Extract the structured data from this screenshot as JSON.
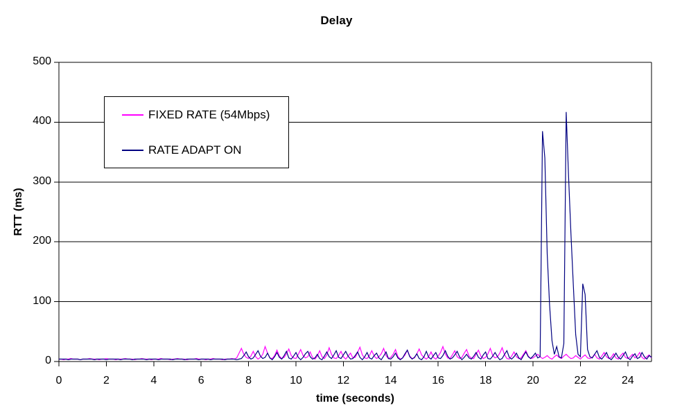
{
  "chart_data": {
    "type": "line",
    "title": "Delay",
    "xlabel": "time (seconds)",
    "ylabel": "RTT (ms)",
    "xlim": [
      0,
      25
    ],
    "ylim": [
      0,
      500
    ],
    "x_ticks": [
      0,
      2,
      4,
      6,
      8,
      10,
      12,
      14,
      16,
      18,
      20,
      22,
      24
    ],
    "y_ticks": [
      0,
      100,
      200,
      300,
      400,
      500
    ],
    "grid": "horizontal-only",
    "plot_border": "full-box",
    "background_color": "#ffffff",
    "axis_color": "#000000",
    "legend_position": "inside-top-left",
    "series": [
      {
        "name": "FIXED RATE (54Mbps)",
        "color": "#ff00ff",
        "t0": 0,
        "dt": 0.1,
        "values": [
          4,
          4,
          3,
          4,
          4,
          5,
          4,
          4,
          4,
          3,
          4,
          4,
          4,
          5,
          4,
          4,
          4,
          3,
          4,
          4,
          5,
          4,
          4,
          4,
          3,
          4,
          4,
          4,
          5,
          4,
          4,
          4,
          3,
          4,
          4,
          5,
          4,
          4,
          4,
          3,
          4,
          4,
          4,
          5,
          4,
          4,
          4,
          3,
          4,
          4,
          5,
          4,
          4,
          4,
          3,
          4,
          4,
          4,
          5,
          4,
          4,
          4,
          3,
          4,
          4,
          5,
          4,
          4,
          4,
          3,
          4,
          4,
          4,
          5,
          4,
          6,
          14,
          22,
          12,
          7,
          5,
          9,
          17,
          8,
          4,
          7,
          12,
          25,
          14,
          6,
          5,
          10,
          19,
          9,
          5,
          7,
          13,
          21,
          10,
          6,
          5,
          12,
          20,
          10,
          6,
          8,
          16,
          7,
          4,
          9,
          18,
          8,
          5,
          11,
          23,
          12,
          6,
          5,
          10,
          17,
          8,
          4,
          9,
          14,
          6,
          7,
          15,
          24,
          11,
          6,
          5,
          10,
          18,
          9,
          5,
          8,
          13,
          22,
          10,
          5,
          7,
          12,
          20,
          8,
          4,
          6,
          11,
          19,
          9,
          5,
          6,
          13,
          21,
          11,
          7,
          4,
          8,
          16,
          7,
          4,
          9,
          15,
          25,
          13,
          6,
          5,
          11,
          18,
          8,
          5,
          7,
          14,
          20,
          9,
          6,
          5,
          12,
          19,
          9,
          5,
          7,
          13,
          22,
          10,
          6,
          8,
          14,
          23,
          11,
          5,
          4,
          9,
          16,
          8,
          5,
          6,
          12,
          18,
          9,
          5,
          6,
          9,
          12,
          8,
          5,
          7,
          10,
          6,
          4,
          8,
          11,
          7,
          5,
          9,
          12,
          8,
          5,
          6,
          10,
          7,
          4,
          8,
          11,
          6,
          5,
          7,
          12,
          6,
          4,
          9,
          15,
          8,
          5,
          7,
          13,
          6,
          4,
          10,
          14,
          7,
          5,
          8,
          12,
          6,
          9,
          15,
          7,
          4,
          8,
          11,
          6
        ]
      },
      {
        "name": "RATE ADAPT ON",
        "color": "#000080",
        "t0": 0,
        "dt": 0.1,
        "values": [
          4,
          4,
          4,
          4,
          3,
          4,
          4,
          4,
          4,
          3,
          4,
          4,
          4,
          4,
          4,
          3,
          4,
          4,
          4,
          4,
          3,
          4,
          4,
          4,
          4,
          4,
          3,
          4,
          4,
          4,
          4,
          3,
          4,
          4,
          4,
          4,
          4,
          3,
          4,
          4,
          4,
          4,
          3,
          4,
          4,
          4,
          4,
          4,
          3,
          4,
          4,
          4,
          4,
          3,
          4,
          4,
          4,
          4,
          4,
          3,
          4,
          4,
          4,
          4,
          3,
          4,
          4,
          4,
          4,
          4,
          3,
          4,
          4,
          4,
          4,
          3,
          4,
          5,
          10,
          16,
          8,
          4,
          6,
          12,
          18,
          9,
          5,
          7,
          14,
          6,
          3,
          8,
          15,
          7,
          4,
          10,
          17,
          6,
          4,
          9,
          15,
          7,
          3,
          7,
          13,
          17,
          8,
          4,
          6,
          12,
          5,
          3,
          9,
          16,
          8,
          5,
          11,
          18,
          7,
          5,
          11,
          17,
          9,
          4,
          5,
          10,
          16,
          7,
          3,
          8,
          15,
          6,
          4,
          10,
          14,
          6,
          3,
          9,
          16,
          5,
          4,
          8,
          14,
          6,
          3,
          6,
          13,
          19,
          8,
          4,
          7,
          13,
          5,
          3,
          8,
          17,
          7,
          4,
          10,
          15,
          6,
          5,
          10,
          18,
          9,
          4,
          6,
          11,
          17,
          8,
          3,
          7,
          12,
          6,
          4,
          9,
          15,
          7,
          4,
          11,
          16,
          5,
          4,
          9,
          15,
          8,
          3,
          5,
          12,
          18,
          7,
          4,
          8,
          14,
          6,
          3,
          10,
          16,
          8,
          5,
          9,
          14,
          6,
          8,
          385,
          340,
          180,
          95,
          35,
          12,
          25,
          8,
          6,
          30,
          417,
          310,
          215,
          130,
          45,
          12,
          8,
          130,
          112,
          20,
          8,
          6,
          12,
          18,
          7,
          4,
          9,
          15,
          6,
          3,
          8,
          14,
          7,
          4,
          10,
          16,
          6,
          3,
          9,
          13,
          5,
          7,
          15,
          8,
          4,
          10,
          7
        ]
      }
    ]
  }
}
